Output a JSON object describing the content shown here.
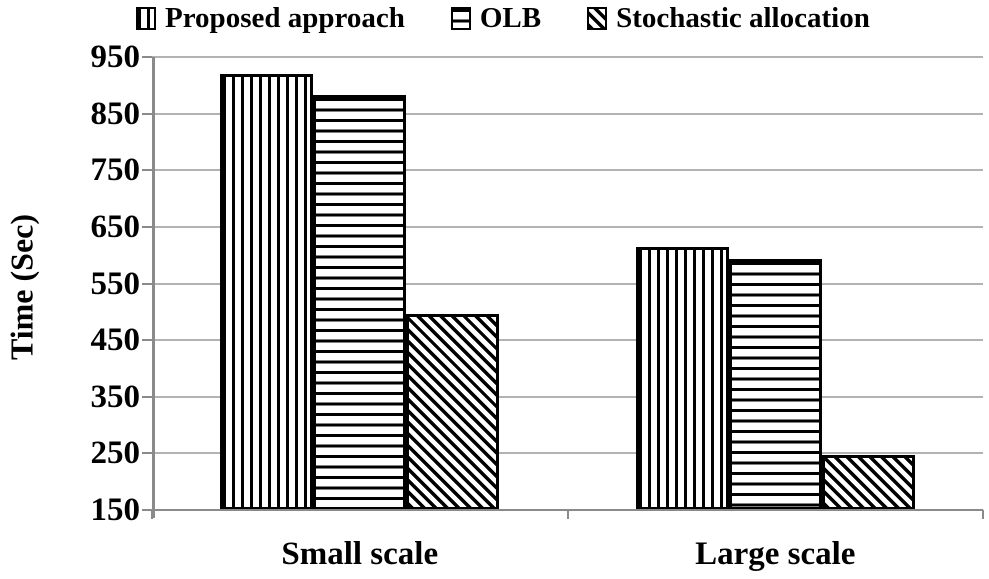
{
  "chart_data": {
    "type": "bar",
    "title": "",
    "categories": [
      "Small scale",
      "Large scale"
    ],
    "series": [
      {
        "name": "Proposed approach",
        "pattern": "vertical-stripes",
        "values": [
          920,
          614
        ]
      },
      {
        "name": "OLB",
        "pattern": "horizontal-stripes",
        "values": [
          883,
          594
        ]
      },
      {
        "name": "Stochastic allocation",
        "pattern": "diagonal-stripes",
        "values": [
          497,
          247
        ]
      }
    ],
    "xlabel": "",
    "ylabel": "Time (Sec)",
    "ylim": [
      150,
      950
    ],
    "yticks": [
      150,
      250,
      350,
      450,
      550,
      650,
      750,
      850,
      950
    ],
    "grid": true,
    "legend_position": "top",
    "colors": {
      "bar_outline": "#000000",
      "bar_fill": "#ffffff",
      "gridline": "#b3b3b3",
      "axis": "#8a8a8a",
      "text": "#000000",
      "background": "#ffffff"
    }
  }
}
